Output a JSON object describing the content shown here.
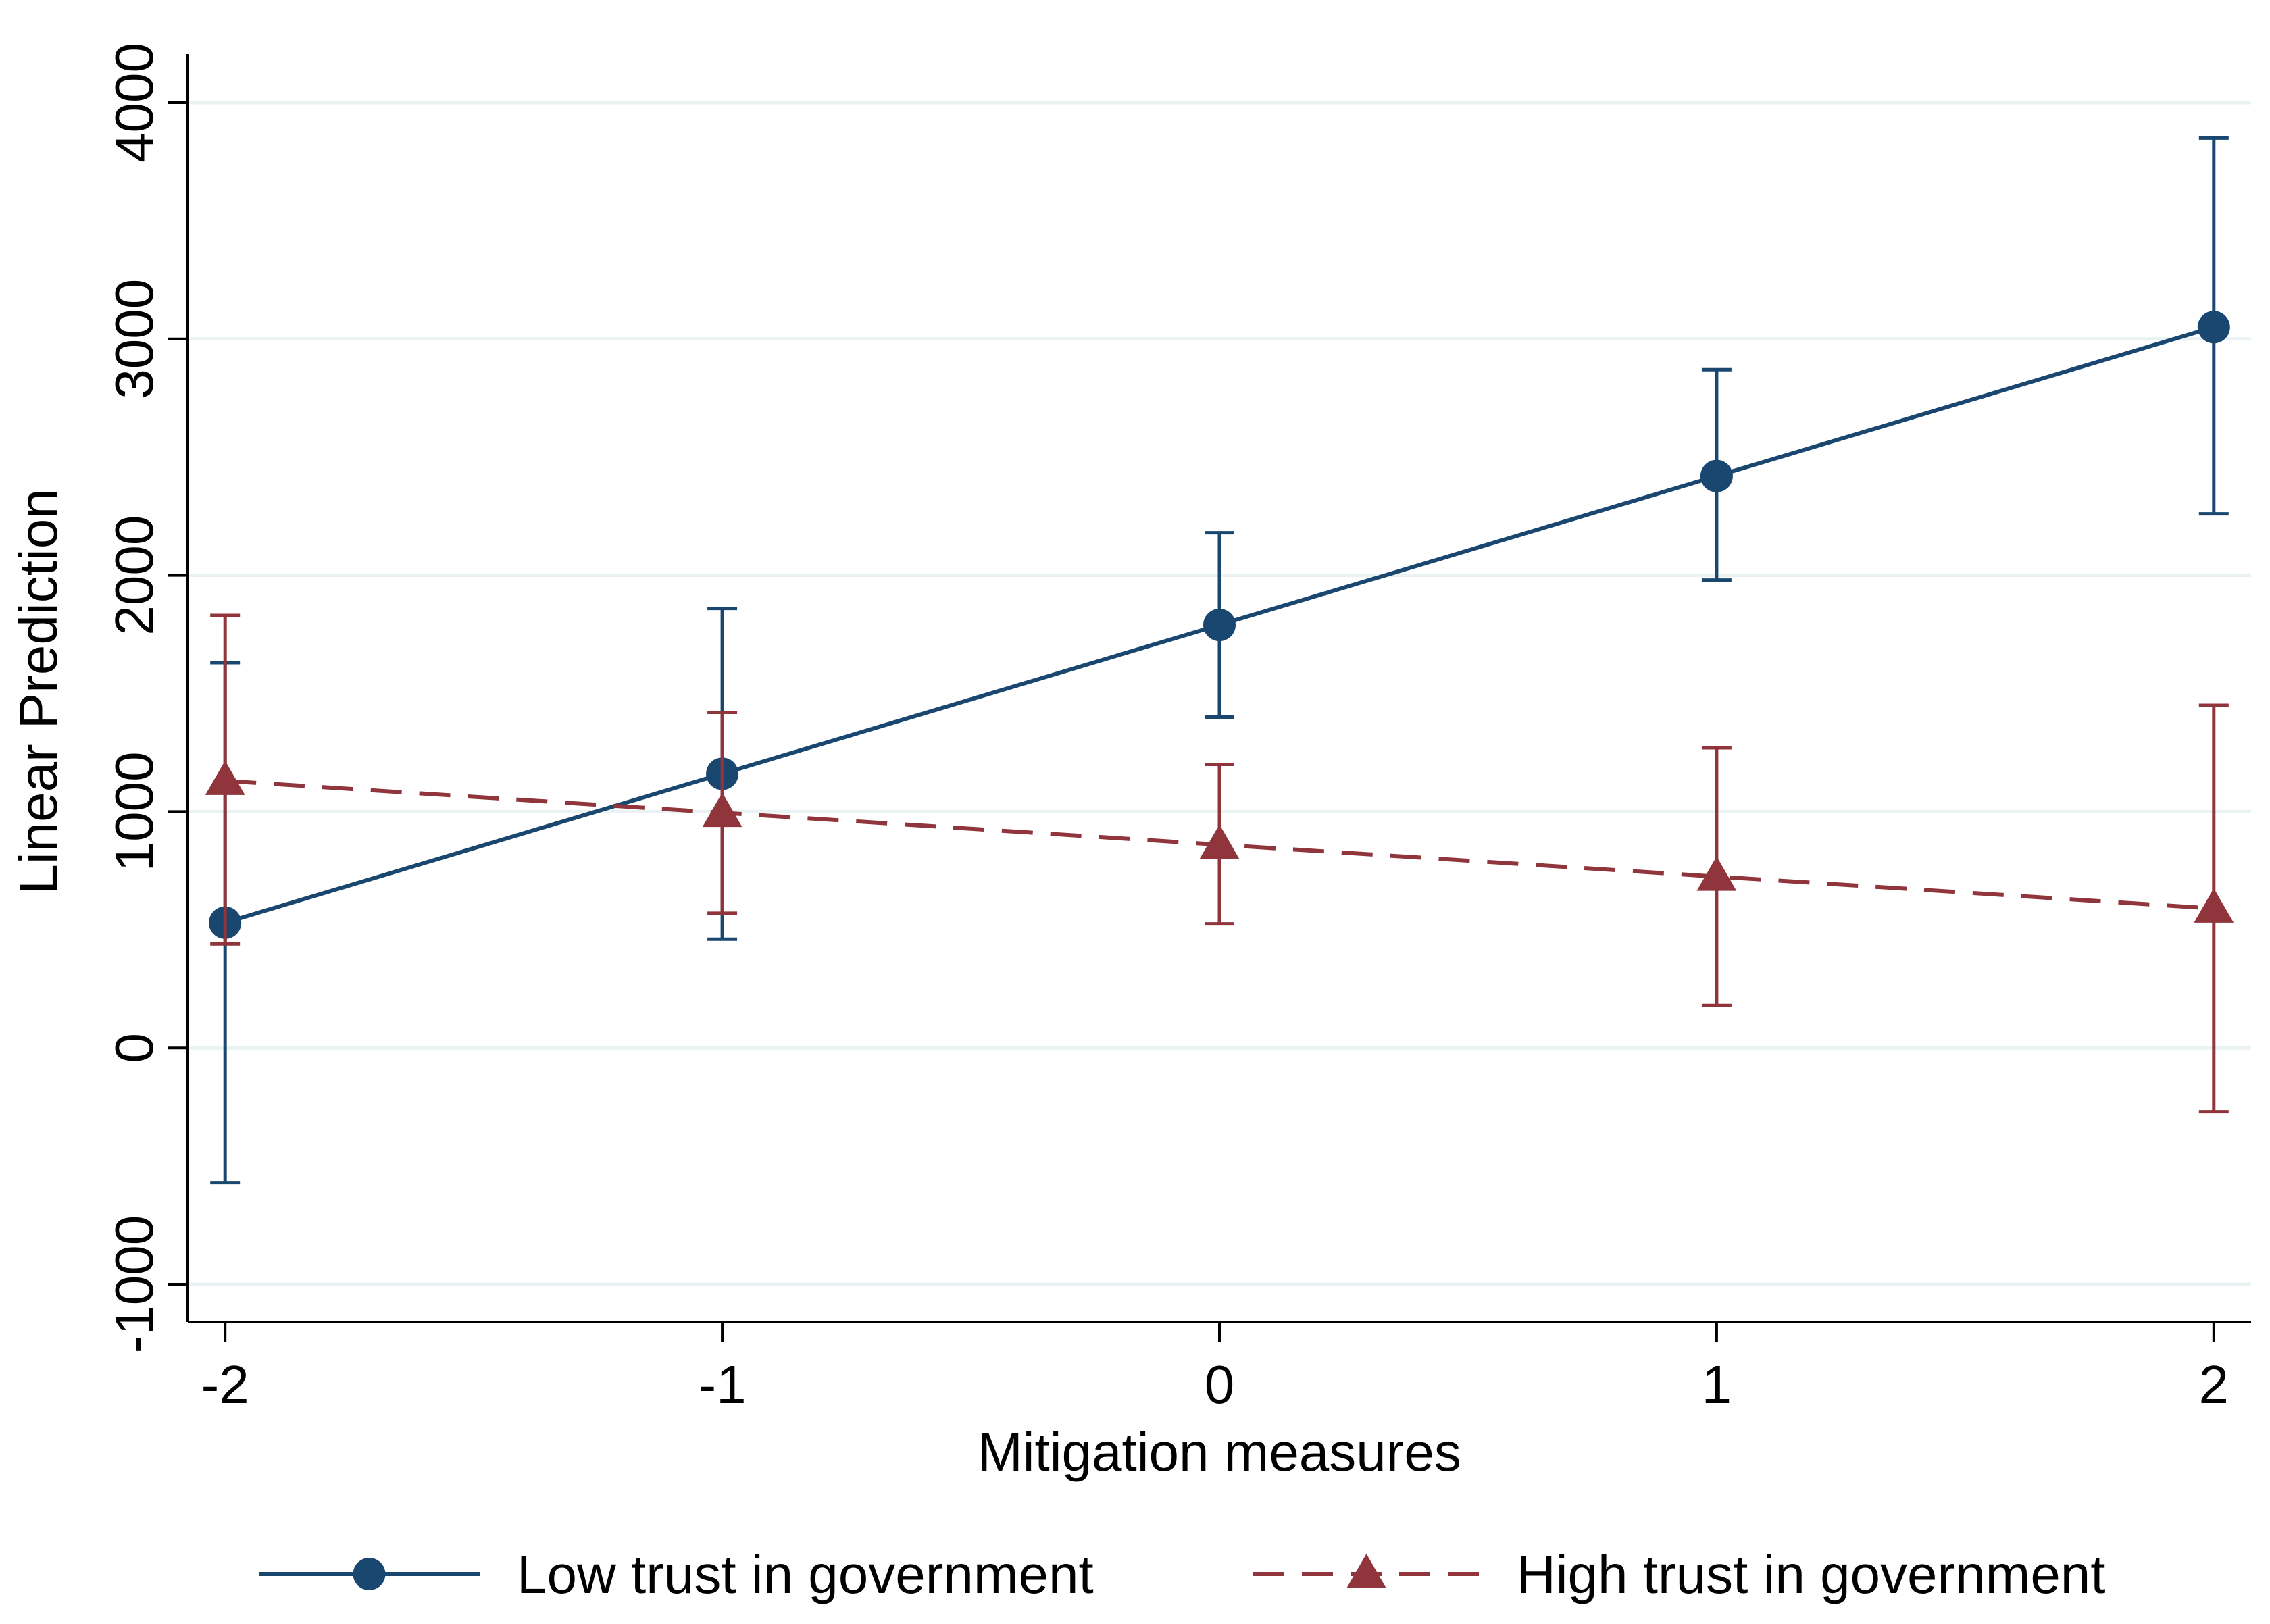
{
  "chart_data": {
    "type": "line",
    "xlabel": "Mitigation measures",
    "ylabel": "Linear Prediction",
    "x": [
      -2,
      -1,
      0,
      1,
      2
    ],
    "x_tick_labels": [
      "-2",
      "-1",
      "0",
      "1",
      "2"
    ],
    "xlim": [
      -2.075,
      2.075
    ],
    "y_ticks": [
      -1000,
      0,
      1000,
      2000,
      3000,
      4000
    ],
    "y_tick_labels": [
      "-1000",
      "0",
      "1000",
      "2000",
      "3000",
      "4000"
    ],
    "ylim": [
      -1160,
      4200
    ],
    "grid": "horizontal",
    "legend_position": "bottom",
    "series": [
      {
        "name": "Low trust in government",
        "color": "#1a476f",
        "line_style": "solid",
        "marker": "circle",
        "values": [
          530,
          1160,
          1790,
          2420,
          3050
        ],
        "ci_lower": [
          -570,
          460,
          1400,
          1980,
          2260
        ],
        "ci_upper": [
          1630,
          1860,
          2180,
          2870,
          3850
        ]
      },
      {
        "name": "High trust in government",
        "color": "#90353b",
        "line_style": "dashed",
        "marker": "triangle",
        "values": [
          1130,
          995,
          860,
          725,
          590
        ],
        "ci_lower": [
          440,
          570,
          525,
          180,
          -270
        ],
        "ci_upper": [
          1830,
          1420,
          1200,
          1270,
          1450
        ]
      }
    ]
  }
}
